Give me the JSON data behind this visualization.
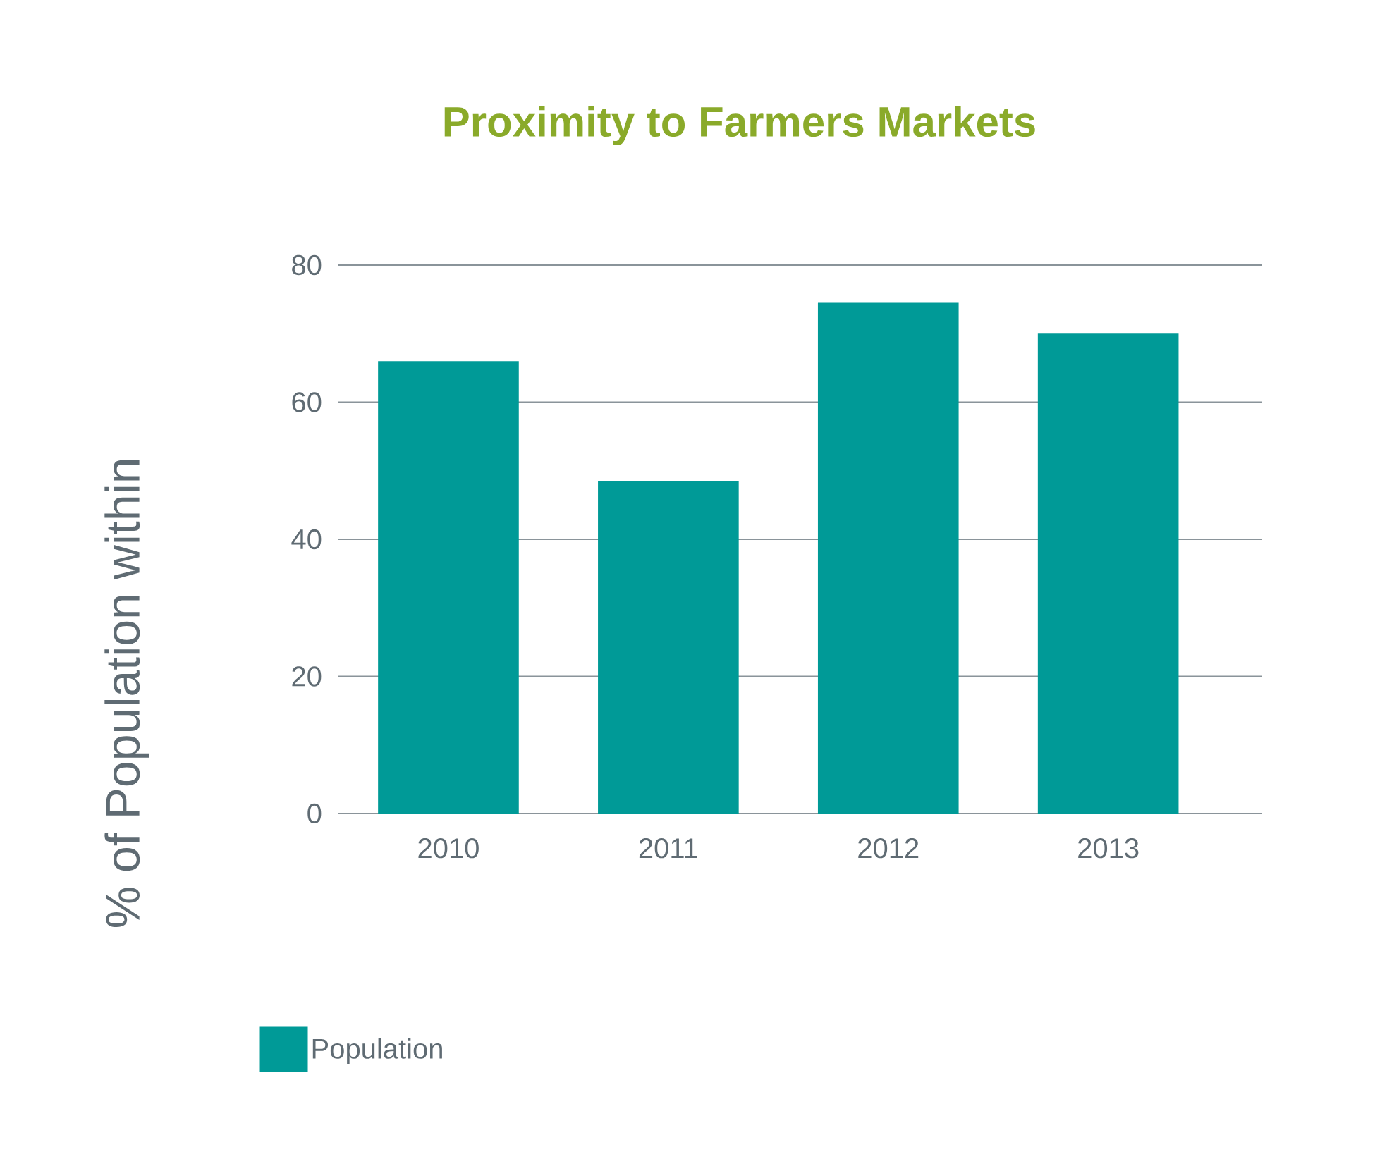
{
  "chart_data": {
    "type": "bar",
    "title": "Proximity to Farmers Markets",
    "ylabel": "% of Population within",
    "categories": [
      "2010",
      "2011",
      "2012",
      "2013"
    ],
    "series": [
      {
        "name": "Population",
        "color": "#009a97",
        "values": [
          66,
          48.5,
          74.5,
          70
        ]
      }
    ],
    "ylim": [
      0,
      80
    ],
    "yticks": [
      0,
      20,
      40,
      60,
      80
    ],
    "grid": "y",
    "legend": "bottom left"
  }
}
